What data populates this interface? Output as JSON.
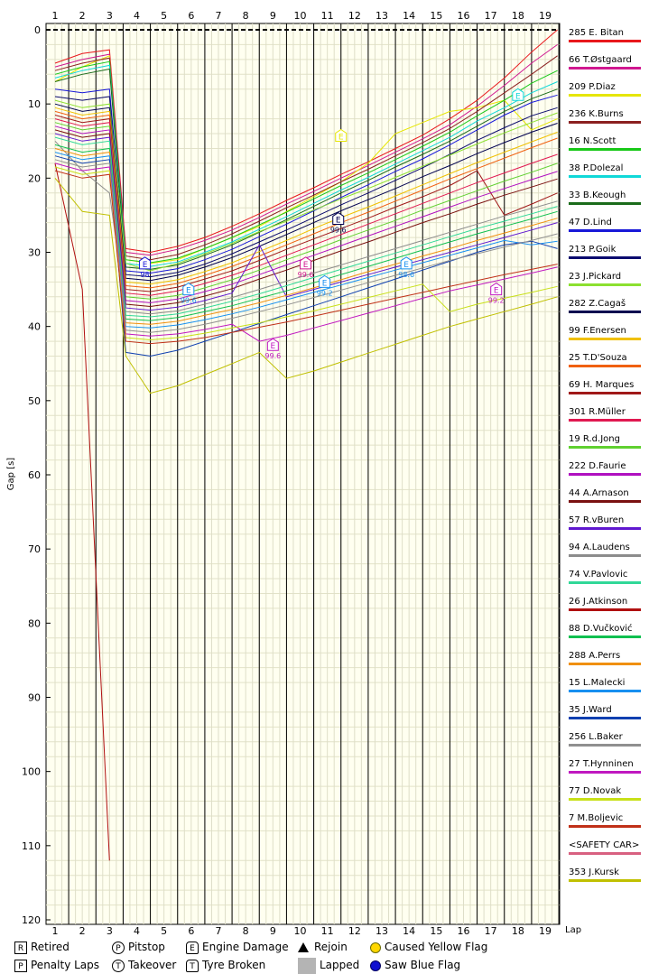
{
  "chart_data": {
    "type": "line",
    "ylabel": "Gap [s]",
    "xlabel": "Lap",
    "xlim": [
      1,
      19
    ],
    "ylim": [
      0,
      120
    ],
    "x_ticks": [
      "1",
      "2",
      "3",
      "4",
      "5",
      "6",
      "7",
      "8",
      "9",
      "10",
      "11",
      "12",
      "13",
      "14",
      "15",
      "16",
      "17",
      "18",
      "19"
    ],
    "y_ticks": [
      "0",
      "10",
      "20",
      "30",
      "40",
      "50",
      "60",
      "70",
      "80",
      "90",
      "100",
      "110",
      "120"
    ],
    "legend_placement": "right",
    "series": [
      {
        "name": "285 E. Bitan",
        "color": "#e8181c",
        "values": [
          4.5,
          3.2,
          2.7,
          29.5,
          30.0,
          29.2,
          28.0,
          26.5,
          24.8,
          23.0,
          21.3,
          19.5,
          17.8,
          16.0,
          14.2,
          12.0,
          9.5,
          6.5,
          3.0,
          0.0
        ]
      },
      {
        "name": "66 T.Østgaard",
        "color": "#d01890",
        "values": [
          5.0,
          4.0,
          3.3,
          30.0,
          30.4,
          29.6,
          28.4,
          27.0,
          25.3,
          23.5,
          21.8,
          20.0,
          18.3,
          16.5,
          14.7,
          12.8,
          10.3,
          7.5,
          4.5,
          2.0
        ]
      },
      {
        "name": "209 P.Diaz",
        "color": "#e6e600",
        "values": [
          7.0,
          5.0,
          3.5,
          31.0,
          31.5,
          31.0,
          29.5,
          28.0,
          26.5,
          24.5,
          22.5,
          20.5,
          18.0,
          14.0,
          12.5,
          11.0,
          10.5,
          9.5,
          13.5,
          12.0
        ]
      },
      {
        "name": "236 K.Burns",
        "color": "#8b2020",
        "values": [
          5.5,
          4.5,
          3.8,
          30.5,
          31.0,
          30.3,
          29.0,
          27.5,
          25.8,
          24.0,
          22.3,
          20.5,
          18.8,
          17.0,
          15.2,
          13.3,
          11.0,
          8.5,
          6.0,
          3.5
        ]
      },
      {
        "name": "16 N.Scott",
        "color": "#18c818",
        "values": [
          6.0,
          5.0,
          4.3,
          31.0,
          31.4,
          30.8,
          29.5,
          28.0,
          26.3,
          24.6,
          22.8,
          21.0,
          19.3,
          17.5,
          15.7,
          13.8,
          11.6,
          9.5,
          7.2,
          5.5
        ]
      },
      {
        "name": "38 P.Dolezal",
        "color": "#10d8d8",
        "values": [
          6.5,
          5.5,
          4.8,
          31.5,
          31.9,
          31.3,
          30.0,
          28.6,
          26.9,
          25.2,
          23.4,
          21.6,
          19.9,
          18.1,
          16.3,
          14.5,
          12.3,
          10.5,
          8.5,
          7.0
        ]
      },
      {
        "name": "33 B.Keough",
        "color": "#1a6b1a",
        "values": [
          7.0,
          6.0,
          5.3,
          32.0,
          32.3,
          31.7,
          30.4,
          29.0,
          27.3,
          25.6,
          23.8,
          22.0,
          20.3,
          18.5,
          16.8,
          15.0,
          13.0,
          11.0,
          9.3,
          8.0
        ]
      },
      {
        "name": "47 D.Lind",
        "color": "#1818d8",
        "values": [
          8.0,
          8.5,
          8.0,
          32.5,
          32.8,
          32.2,
          31.0,
          29.6,
          27.9,
          26.2,
          24.4,
          22.6,
          20.9,
          19.1,
          17.4,
          15.5,
          13.5,
          11.5,
          9.8,
          8.8
        ]
      },
      {
        "name": "213 P.Goik",
        "color": "#0a0a6e",
        "values": [
          9.0,
          9.5,
          9.0,
          33.0,
          33.3,
          32.7,
          31.6,
          30.2,
          28.6,
          27.0,
          25.3,
          23.6,
          22.0,
          20.3,
          18.6,
          16.8,
          14.9,
          13.2,
          11.6,
          10.5
        ]
      },
      {
        "name": "23 J.Pickard",
        "color": "#8ce030",
        "values": [
          9.5,
          10.5,
          10.0,
          31.5,
          32.5,
          31.5,
          30.2,
          28.8,
          27.2,
          25.8,
          24.3,
          22.8,
          21.4,
          19.9,
          18.4,
          16.9,
          15.4,
          13.9,
          12.5,
          11.2
        ]
      },
      {
        "name": "282 Z.Cagaš",
        "color": "#000050",
        "values": [
          10.0,
          11.0,
          10.5,
          33.5,
          33.8,
          33.1,
          32.0,
          30.7,
          29.2,
          27.6,
          26.0,
          24.4,
          22.9,
          21.4,
          19.8,
          18.3,
          16.7,
          15.2,
          13.8,
          12.6
        ]
      },
      {
        "name": "99 F.Enersen",
        "color": "#f0c000",
        "values": [
          10.5,
          11.5,
          11.0,
          34.0,
          34.3,
          33.7,
          32.6,
          31.4,
          29.9,
          28.4,
          26.8,
          25.3,
          23.9,
          22.4,
          20.9,
          19.4,
          17.9,
          16.5,
          15.1,
          13.8
        ]
      },
      {
        "name": "25 T.D'Souza",
        "color": "#f06010",
        "values": [
          11.0,
          12.0,
          11.5,
          34.5,
          34.8,
          34.2,
          33.1,
          31.9,
          30.5,
          29.0,
          27.5,
          26.0,
          24.6,
          23.1,
          21.6,
          20.1,
          18.7,
          17.3,
          15.9,
          14.6
        ]
      },
      {
        "name": "69 H. Marques",
        "color": "#a01818",
        "values": [
          11.5,
          12.5,
          12.0,
          35.0,
          35.3,
          34.7,
          33.6,
          32.5,
          31.1,
          29.6,
          28.2,
          26.8,
          25.4,
          23.9,
          22.5,
          21.0,
          19.0,
          25.0,
          23.5,
          22.0
        ]
      },
      {
        "name": "301 R.Müller",
        "color": "#e01850",
        "values": [
          12.0,
          13.0,
          12.5,
          35.5,
          35.8,
          35.2,
          34.2,
          33.1,
          31.8,
          30.4,
          29.0,
          27.6,
          26.2,
          24.8,
          23.4,
          22.0,
          20.6,
          19.3,
          18.0,
          16.8
        ]
      },
      {
        "name": "19 R.d.Jong",
        "color": "#60d030",
        "values": [
          12.5,
          13.5,
          13.0,
          36.0,
          36.3,
          35.8,
          34.8,
          33.7,
          32.4,
          31.0,
          29.7,
          28.3,
          27.0,
          25.7,
          24.3,
          23.0,
          21.7,
          20.4,
          19.2,
          18.0
        ]
      },
      {
        "name": "222 D.Faurie",
        "color": "#b010c0",
        "values": [
          13.0,
          14.0,
          13.5,
          36.5,
          36.8,
          36.3,
          35.3,
          34.3,
          33.0,
          31.7,
          30.4,
          29.1,
          27.8,
          26.5,
          25.2,
          23.9,
          22.6,
          21.4,
          20.2,
          19.1
        ]
      },
      {
        "name": "44 A.Arnason",
        "color": "#7a1010",
        "values": [
          13.5,
          14.5,
          14.0,
          37.0,
          37.3,
          36.8,
          35.9,
          34.9,
          33.6,
          32.4,
          31.1,
          29.8,
          28.6,
          27.3,
          26.0,
          24.8,
          23.5,
          22.3,
          21.2,
          20.1
        ]
      },
      {
        "name": "57 R.vBuren",
        "color": "#6018d0",
        "values": [
          14.0,
          15.0,
          14.5,
          37.5,
          37.8,
          37.4,
          36.5,
          35.5,
          29.0,
          36.0,
          35.0,
          34.0,
          33.0,
          32.0,
          31.0,
          30.0,
          29.0,
          28.0,
          27.0,
          26.0
        ]
      },
      {
        "name": "94 A.Laudens",
        "color": "#8c8c8c",
        "values": [
          15.0,
          19.0,
          22.0,
          38.0,
          38.3,
          37.9,
          37.0,
          36.1,
          35.0,
          33.9,
          32.8,
          31.7,
          30.6,
          29.5,
          28.4,
          27.3,
          26.2,
          25.1,
          24.1,
          23.1
        ]
      },
      {
        "name": "74 V.Pavlovic",
        "color": "#30d898",
        "values": [
          14.5,
          15.5,
          15.0,
          38.5,
          38.7,
          38.3,
          37.5,
          36.6,
          35.6,
          34.5,
          33.4,
          32.3,
          31.2,
          30.1,
          29.0,
          27.9,
          26.8,
          25.8,
          24.8,
          23.8
        ]
      },
      {
        "name": "26 J.Atkinson",
        "color": "#b01010",
        "values": [
          18.0,
          35.0,
          112.0
        ]
      },
      {
        "name": "88 D.Vučković",
        "color": "#10c050",
        "values": [
          15.5,
          16.5,
          16.0,
          39.0,
          39.2,
          38.8,
          38.0,
          37.2,
          36.2,
          35.2,
          34.1,
          33.0,
          31.9,
          30.8,
          29.7,
          28.6,
          27.5,
          26.5,
          25.5,
          24.5
        ]
      },
      {
        "name": "288 A.Perrs",
        "color": "#f09010",
        "values": [
          16.0,
          17.0,
          16.5,
          39.5,
          39.7,
          39.3,
          38.5,
          37.7,
          36.8,
          35.8,
          34.8,
          33.7,
          32.6,
          31.6,
          30.5,
          29.5,
          28.4,
          27.4,
          26.4,
          25.4
        ]
      },
      {
        "name": "15 L.Malecki",
        "color": "#1890f0",
        "values": [
          16.5,
          17.5,
          17.0,
          40.0,
          40.2,
          39.8,
          39.1,
          38.3,
          37.4,
          36.4,
          35.4,
          34.4,
          33.4,
          32.4,
          31.4,
          30.4,
          29.4,
          28.4,
          29.0,
          28.5
        ]
      },
      {
        "name": "35 J.Ward",
        "color": "#1040b0",
        "values": [
          17.0,
          18.0,
          17.5,
          43.5,
          44.0,
          43.2,
          42.0,
          40.8,
          39.6,
          38.4,
          37.2,
          36.0,
          34.8,
          33.6,
          32.4,
          31.2,
          30.0,
          29.0,
          28.5,
          29.5
        ]
      },
      {
        "name": "256 L.Baker",
        "color": "#909090",
        "values": [
          17.5,
          18.5,
          18.0,
          40.5,
          40.8,
          40.4,
          39.7,
          38.9,
          38.0,
          37.1,
          36.1,
          35.1,
          34.1,
          33.1,
          32.1,
          31.1,
          30.2,
          29.3,
          28.4,
          27.5
        ]
      },
      {
        "name": "27 T.Hynninen",
        "color": "#c018c0",
        "values": [
          18.0,
          19.0,
          18.5,
          41.0,
          41.3,
          41.0,
          40.4,
          39.7,
          42.0,
          41.2,
          40.2,
          39.2,
          38.2,
          37.2,
          36.2,
          35.2,
          34.4,
          33.6,
          32.8,
          32.0
        ]
      },
      {
        "name": "77 D.Novak",
        "color": "#c8e018",
        "values": [
          18.5,
          19.5,
          19.0,
          41.5,
          41.8,
          41.5,
          40.9,
          40.2,
          39.5,
          38.7,
          37.9,
          37.0,
          36.1,
          35.2,
          34.3,
          38.0,
          37.0,
          36.2,
          35.4,
          34.6
        ]
      },
      {
        "name": "7 M.Boljevic",
        "color": "#c03018",
        "values": [
          19.0,
          20.0,
          19.5,
          42.0,
          42.3,
          42.0,
          41.5,
          40.8,
          40.1,
          39.4,
          38.6,
          37.8,
          37.0,
          36.2,
          35.4,
          34.6,
          33.8,
          33.0,
          32.3,
          31.6
        ]
      },
      {
        "name": "<SAFETY CAR>",
        "color": "#d86080",
        "values": []
      },
      {
        "name": "353 J.Kursk",
        "color": "#c0c000",
        "values": [
          20.0,
          24.5,
          25.0,
          44.0,
          49.0,
          48.0,
          46.5,
          45.0,
          43.5,
          47.0,
          46.0,
          44.8,
          43.6,
          42.4,
          41.2,
          40.0,
          39.0,
          38.0,
          37.0,
          36.0
        ]
      }
    ],
    "annotations": [
      {
        "symbol": "E",
        "lap": 4.3,
        "gap": 31.5,
        "label": "98",
        "color": "#1818d8"
      },
      {
        "symbol": "E",
        "lap": 5.9,
        "gap": 35.0,
        "label": "99.6",
        "color": "#1890f0"
      },
      {
        "symbol": "E",
        "lap": 9.0,
        "gap": 42.5,
        "label": "99.6",
        "color": "#c018c0"
      },
      {
        "symbol": "E",
        "lap": 10.2,
        "gap": 31.5,
        "label": "99.6",
        "color": "#d01890"
      },
      {
        "symbol": "E",
        "lap": 10.9,
        "gap": 34.0,
        "label": "99.2",
        "color": "#1890f0"
      },
      {
        "symbol": "E",
        "lap": 11.4,
        "gap": 25.5,
        "label": "99.6",
        "color": "#000050"
      },
      {
        "symbol": "E",
        "lap": 11.5,
        "gap": 14.3,
        "label": "",
        "color": "#e6e600"
      },
      {
        "symbol": "E",
        "lap": 13.9,
        "gap": 31.5,
        "label": "98.6",
        "color": "#1890f0"
      },
      {
        "symbol": "E",
        "lap": 17.2,
        "gap": 35.0,
        "label": "99.2",
        "color": "#c018c0"
      },
      {
        "symbol": "E",
        "lap": 18.0,
        "gap": 8.8,
        "label": "",
        "color": "#10d8d8"
      }
    ],
    "key": [
      {
        "symbol": "R",
        "label": "Retired",
        "icon": "box-letter"
      },
      {
        "symbol": "P",
        "label": "Pitstop",
        "icon": "circle-letter"
      },
      {
        "symbol": "E",
        "label": "Engine Damage",
        "icon": "pentagon-letter"
      },
      {
        "symbol": "",
        "label": "Rejoin",
        "icon": "triangle"
      },
      {
        "symbol": "",
        "label": "Caused Yellow Flag",
        "icon": "yellow-dot"
      },
      {
        "symbol": "P",
        "label": "Penalty Laps",
        "icon": "box-letter"
      },
      {
        "symbol": "T",
        "label": "Takeover",
        "icon": "circle-letter"
      },
      {
        "symbol": "T",
        "label": "Tyre Broken",
        "icon": "pentagon-letter"
      },
      {
        "symbol": "",
        "label": "Lapped",
        "icon": "grey-box"
      },
      {
        "symbol": "",
        "label": "Saw Blue Flag",
        "icon": "blue-dot"
      }
    ]
  }
}
